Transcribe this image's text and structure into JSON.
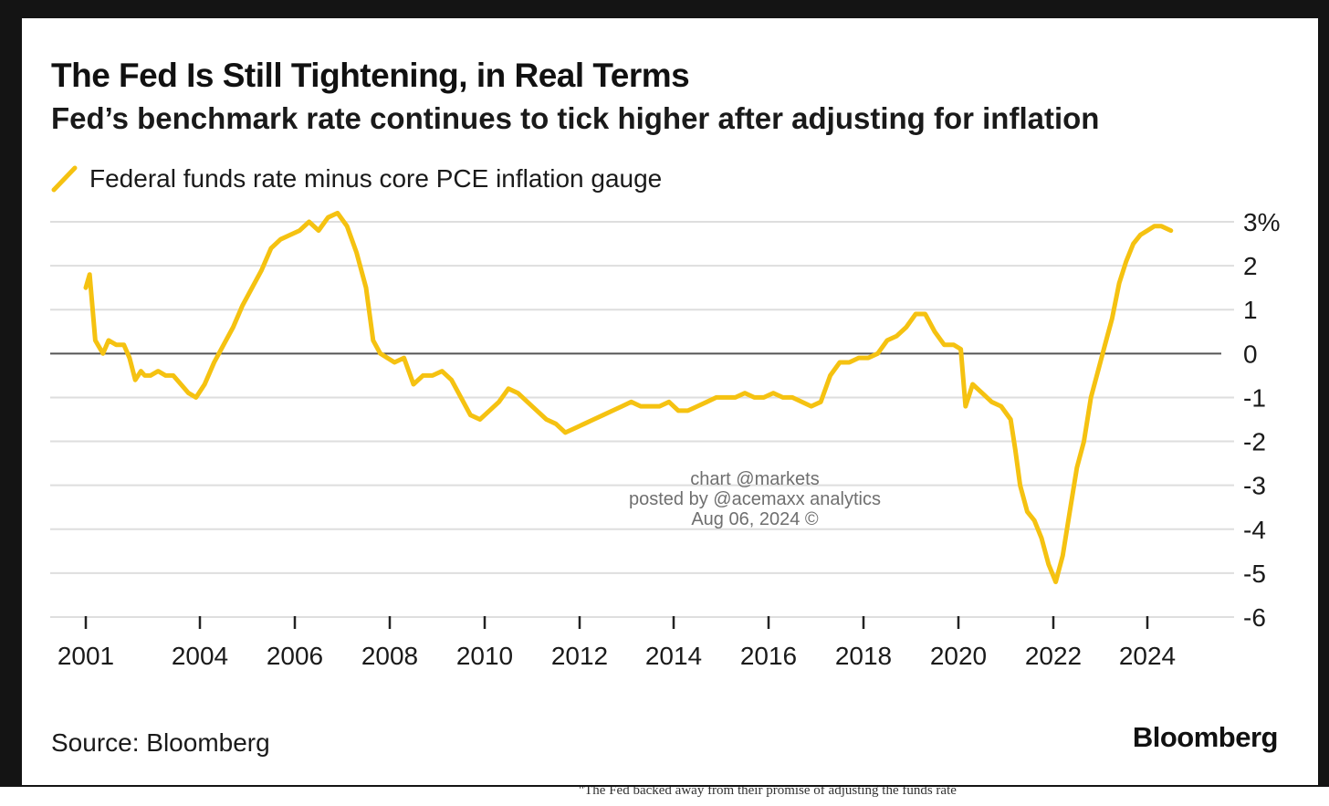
{
  "footnote": "\"The Fed backed away from their promise of adjusting the funds rate",
  "watermark": {
    "line1": "chart @markets",
    "line2": "posted by @acemaxx analytics",
    "line3": "Aug 06, 2024 ©"
  },
  "source": "Source: Bloomberg",
  "brand": "Bloomberg",
  "colors": {
    "series": "#f5c211",
    "grid": "#dedede",
    "zero_line": "#555555",
    "frame": "#141414",
    "text": "#1a1a1a"
  },
  "chart_data": {
    "type": "line",
    "title": "The Fed Is Still Tightening, in Real Terms",
    "subtitle": "Fed’s benchmark rate continues to tick higher after adjusting for inflation",
    "xlabel": "",
    "ylabel": "",
    "x_ticks": [
      "2001",
      "2004",
      "2006",
      "2008",
      "2010",
      "2012",
      "2014",
      "2016",
      "2018",
      "2020",
      "2022",
      "2024"
    ],
    "y_ticks": [
      3,
      2,
      1,
      0,
      -1,
      -2,
      -3,
      -4,
      -5,
      -6
    ],
    "y_tick_labels": [
      "3%",
      "2",
      "1",
      "0",
      "-1",
      "-2",
      "-3",
      "-4",
      "-5",
      "-6"
    ],
    "ylim": [
      -6,
      3
    ],
    "xlim": [
      2001,
      2024.5
    ],
    "grid": true,
    "legend_position": "top-left",
    "series": [
      {
        "name": "Federal funds rate minus core PCE inflation gauge",
        "color": "#f5c211",
        "x": [
          2001.0,
          2001.1,
          2001.25,
          2001.45,
          2001.6,
          2001.8,
          2002.0,
          2002.15,
          2002.3,
          2002.45,
          2002.55,
          2002.7,
          2002.9,
          2003.1,
          2003.3,
          2003.5,
          2003.7,
          2003.9,
          2004.1,
          2004.3,
          2004.5,
          2004.7,
          2004.9,
          2005.1,
          2005.3,
          2005.5,
          2005.7,
          2005.9,
          2006.1,
          2006.3,
          2006.5,
          2006.7,
          2006.9,
          2007.1,
          2007.3,
          2007.5,
          2007.65,
          2007.8,
          2007.95,
          2008.1,
          2008.3,
          2008.5,
          2008.7,
          2008.9,
          2009.1,
          2009.3,
          2009.5,
          2009.7,
          2009.9,
          2010.1,
          2010.3,
          2010.5,
          2010.7,
          2010.9,
          2011.1,
          2011.3,
          2011.5,
          2011.7,
          2011.9,
          2012.1,
          2012.3,
          2012.5,
          2012.7,
          2012.9,
          2013.1,
          2013.3,
          2013.5,
          2013.7,
          2013.9,
          2014.1,
          2014.3,
          2014.5,
          2014.7,
          2014.9,
          2015.1,
          2015.3,
          2015.5,
          2015.7,
          2015.9,
          2016.1,
          2016.3,
          2016.5,
          2016.7,
          2016.9,
          2017.1,
          2017.3,
          2017.5,
          2017.7,
          2017.9,
          2018.1,
          2018.3,
          2018.5,
          2018.7,
          2018.9,
          2019.1,
          2019.3,
          2019.5,
          2019.7,
          2019.9,
          2020.05,
          2020.15,
          2020.3,
          2020.5,
          2020.7,
          2020.9,
          2021.1,
          2021.2,
          2021.3,
          2021.45,
          2021.6,
          2021.75,
          2021.9,
          2022.05,
          2022.2,
          2022.35,
          2022.5,
          2022.65,
          2022.8,
          2022.95,
          2023.1,
          2023.25,
          2023.4,
          2023.55,
          2023.7,
          2023.85,
          2024.0,
          2024.15,
          2024.3,
          2024.5
        ],
        "y": [
          1.5,
          1.8,
          0.3,
          0.0,
          0.3,
          0.2,
          0.2,
          -0.1,
          -0.6,
          -0.4,
          -0.5,
          -0.5,
          -0.4,
          -0.5,
          -0.5,
          -0.7,
          -0.9,
          -1.0,
          -0.7,
          -0.2,
          0.2,
          0.6,
          1.1,
          1.5,
          1.9,
          2.4,
          2.6,
          2.7,
          2.8,
          3.0,
          2.8,
          3.1,
          3.2,
          2.9,
          2.3,
          1.5,
          0.3,
          0.0,
          -0.1,
          -0.2,
          -0.1,
          -0.7,
          -0.5,
          -0.5,
          -0.4,
          -0.6,
          -1.0,
          -1.4,
          -1.5,
          -1.3,
          -1.1,
          -0.8,
          -0.9,
          -1.1,
          -1.3,
          -1.5,
          -1.6,
          -1.8,
          -1.7,
          -1.6,
          -1.5,
          -1.4,
          -1.3,
          -1.2,
          -1.1,
          -1.2,
          -1.2,
          -1.2,
          -1.1,
          -1.3,
          -1.3,
          -1.2,
          -1.1,
          -1.0,
          -1.0,
          -1.0,
          -0.9,
          -1.0,
          -1.0,
          -0.9,
          -1.0,
          -1.0,
          -1.1,
          -1.2,
          -1.1,
          -0.5,
          -0.2,
          -0.2,
          -0.1,
          -0.1,
          0.0,
          0.3,
          0.4,
          0.6,
          0.9,
          0.9,
          0.5,
          0.2,
          0.2,
          0.1,
          -1.2,
          -0.7,
          -0.9,
          -1.1,
          -1.2,
          -1.5,
          -2.2,
          -3.0,
          -3.6,
          -3.8,
          -4.2,
          -4.8,
          -5.2,
          -4.6,
          -3.6,
          -2.6,
          -2.0,
          -1.0,
          -0.4,
          0.2,
          0.8,
          1.6,
          2.1,
          2.5,
          2.7,
          2.8,
          2.9,
          2.9,
          2.8
        ]
      }
    ]
  }
}
